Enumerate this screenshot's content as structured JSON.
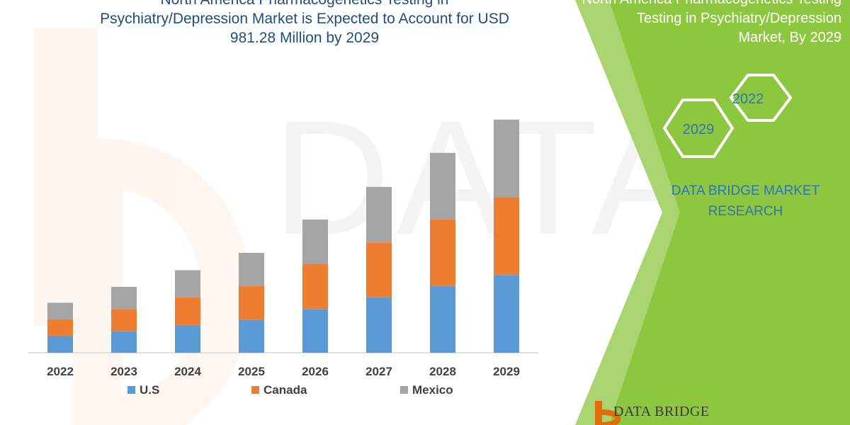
{
  "header": {
    "title_lines": [
      "North America Pharmacogenetics Testing in",
      "Psychiatry/Depression Market is Expected to Account for USD",
      "981.28 Million by 2029"
    ]
  },
  "side_panel": {
    "title_lines": [
      "North America Pharmacogenetics Testing",
      "Testing in Psychiatry/Depression",
      "Market, By 2029"
    ],
    "hexagons": [
      "2022",
      "2029"
    ],
    "brand_lines": [
      "DATA BRIDGE MARKET",
      "RESEARCH"
    ],
    "logo_text": "DATA BRIDGE"
  },
  "colors": {
    "us": "#5b9bd5",
    "canada": "#ed7d31",
    "mexico": "#a5a5a5",
    "panel_green": "#8dc63f",
    "title_blue": "#1f4e79"
  },
  "chart_data": {
    "type": "bar",
    "stacked": true,
    "categories": [
      "2022",
      "2023",
      "2024",
      "2025",
      "2026",
      "2027",
      "2028",
      "2029"
    ],
    "series": [
      {
        "name": "U.S",
        "values": [
          24,
          31,
          40,
          47,
          63,
          80,
          96,
          112
        ]
      },
      {
        "name": "Canada",
        "values": [
          24,
          32,
          40,
          49,
          65,
          79,
          96,
          112
        ]
      },
      {
        "name": "Mexico",
        "values": [
          24,
          32,
          39,
          48,
          64,
          80,
          96,
          112
        ]
      }
    ],
    "ylim": [
      0,
      345
    ],
    "grid": false,
    "legend": "bottom",
    "xlabel": "",
    "ylabel": ""
  }
}
